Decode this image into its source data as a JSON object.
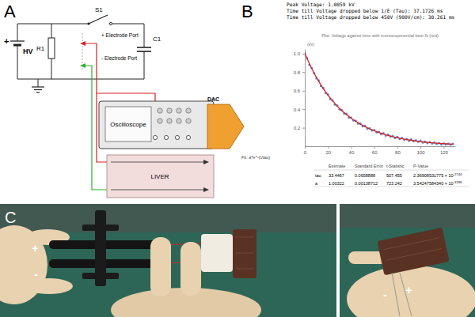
{
  "panels": {
    "a": {
      "label": "A",
      "battery": {
        "sign": "+",
        "label": "HV"
      },
      "resistor": "R1",
      "switch": "S1",
      "ports": [
        "+ Electrode Port",
        "- Electrode Port"
      ],
      "capacitor": "C1",
      "oscilloscope": "Oscilloscope",
      "dac": "DAC",
      "liver": "LIVER"
    },
    "b": {
      "label": "B"
    },
    "c": {
      "label": "C",
      "left_photo": {
        "plus": "+",
        "minus": "-"
      },
      "right_photo": {
        "minus": "-",
        "plus": "+"
      }
    }
  },
  "chart_data": {
    "type": "scatter",
    "annotations": [
      "Peak Voltage: 1.0059 kV",
      "Time till Voltage dropped below 1/E (Tau): 37.1726 ms",
      "Time till Voltage dropped below 450V (900V/cm): 30.261 ms"
    ],
    "title": "Plot: Voltage against time with monoexponential best fit (red)",
    "y_label": "(kV)",
    "xlim": [
      0,
      130
    ],
    "ylim": [
      0,
      1.05
    ],
    "xticks": [
      0,
      20,
      40,
      60,
      80,
      100,
      120
    ],
    "yticks": [
      0.2,
      0.4,
      0.6,
      0.8,
      {
        "value": 1,
        "label": "1.0"
      }
    ],
    "grid": false,
    "series": [
      {
        "color": "#4a6fbf",
        "marker": "circle",
        "x": [
          0,
          2,
          4,
          6,
          8,
          10,
          12,
          14,
          16,
          18,
          20,
          22,
          24,
          26,
          28,
          30,
          32,
          34,
          36,
          38,
          40,
          42,
          44,
          46,
          48,
          50,
          52,
          54,
          56,
          58,
          60,
          62,
          64,
          66,
          68,
          70,
          72,
          74,
          76,
          78,
          80,
          82,
          84,
          86,
          88,
          90,
          92,
          94,
          96,
          98,
          100,
          102,
          104,
          106,
          108,
          110,
          112,
          114,
          116,
          118,
          120,
          122,
          124,
          126,
          128
        ],
        "values": [
          1.006,
          0.95,
          0.88,
          0.845,
          0.79,
          0.735,
          0.71,
          0.65,
          0.63,
          0.575,
          0.56,
          0.51,
          0.495,
          0.45,
          0.44,
          0.4,
          0.39,
          0.355,
          0.35,
          0.31,
          0.31,
          0.28,
          0.275,
          0.245,
          0.245,
          0.215,
          0.22,
          0.19,
          0.195,
          0.17,
          0.175,
          0.15,
          0.155,
          0.13,
          0.14,
          0.115,
          0.125,
          0.105,
          0.11,
          0.09,
          0.1,
          0.08,
          0.09,
          0.07,
          0.08,
          0.06,
          0.075,
          0.055,
          0.065,
          0.05,
          0.06,
          0.04,
          0.05,
          0.035,
          0.045,
          0.03,
          0.04,
          0.025,
          0.035,
          0.02,
          0.03,
          0.02,
          0.028,
          0.018,
          0.025
        ]
      },
      {
        "type": "line",
        "color": "#d62020",
        "x": [
          0,
          4,
          8,
          12,
          16,
          20,
          24,
          28,
          32,
          36,
          40,
          44,
          48,
          52,
          56,
          60,
          64,
          68,
          72,
          76,
          80,
          84,
          88,
          92,
          96,
          100,
          104,
          108,
          112,
          116,
          120,
          124,
          128
        ],
        "values": [
          1.003,
          0.89,
          0.79,
          0.701,
          0.622,
          0.552,
          0.49,
          0.434,
          0.385,
          0.342,
          0.303,
          0.269,
          0.239,
          0.212,
          0.188,
          0.167,
          0.148,
          0.131,
          0.116,
          0.103,
          0.092,
          0.081,
          0.072,
          0.064,
          0.057,
          0.05,
          0.045,
          0.04,
          0.035,
          0.031,
          0.028,
          0.025,
          0.022
        ]
      }
    ],
    "fit": {
      "label": "Fit: a*e^-(t/tau)",
      "columns": [
        "Estimate",
        "Standard Error",
        "t-Statistic",
        "P-Value"
      ],
      "rows": [
        {
          "name": "tau",
          "cells": [
            "33.4467",
            "0.0658888",
            "507.455"
          ],
          "p_value": {
            "mantissa": "2.36908531775 × 10",
            "exponent": "-2744"
          }
        },
        {
          "name": "a",
          "cells": [
            "1.00322",
            "0.00138712",
            "723.242"
          ],
          "p_value": {
            "mantissa": "3.54247584340 × 10",
            "exponent": "-3189"
          }
        }
      ]
    }
  }
}
